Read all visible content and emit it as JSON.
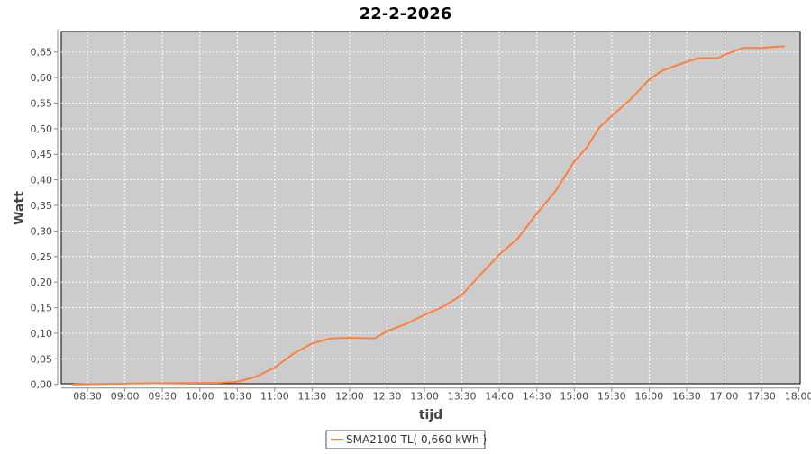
{
  "chart_data": {
    "type": "line",
    "title": "22-2-2026",
    "xlabel": "tijd",
    "ylabel": "Watt",
    "xlim": [
      "08:09",
      "18:01"
    ],
    "ylim": [
      0,
      0.69
    ],
    "grid": true,
    "x_ticks": [
      "08:30",
      "09:00",
      "09:30",
      "10:00",
      "10:30",
      "11:00",
      "11:30",
      "12:00",
      "12:30",
      "13:00",
      "13:30",
      "14:00",
      "14:30",
      "15:00",
      "15:30",
      "16:00",
      "16:30",
      "17:00",
      "17:30",
      "18:00"
    ],
    "y_ticks": [
      "0,00",
      "0,05",
      "0,10",
      "0,15",
      "0,20",
      "0,25",
      "0,30",
      "0,35",
      "0,40",
      "0,45",
      "0,50",
      "0,55",
      "0,60",
      "0,65"
    ],
    "legend_position": "bottom",
    "colors": {
      "plot_background": "#cccccc",
      "series": "#ff7f3f",
      "grid": "#ffffff"
    },
    "series": [
      {
        "name": "SMA2100 TL( 0,660 kWh )",
        "x": [
          "08:19",
          "09:13",
          "10:15",
          "10:30",
          "10:45",
          "11:00",
          "11:15",
          "11:30",
          "11:45",
          "12:00",
          "12:20",
          "12:30",
          "12:45",
          "13:00",
          "13:15",
          "13:30",
          "13:45",
          "14:00",
          "14:15",
          "14:30",
          "14:45",
          "15:00",
          "15:10",
          "15:20",
          "15:30",
          "15:45",
          "16:00",
          "16:10",
          "16:30",
          "16:40",
          "16:55",
          "17:00",
          "17:15",
          "17:30",
          "17:40",
          "17:48"
        ],
        "values": [
          0,
          0.002,
          0.003,
          0.005,
          0.015,
          0.033,
          0.06,
          0.08,
          0.09,
          0.091,
          0.09,
          0.104,
          0.118,
          0.136,
          0.152,
          0.175,
          0.215,
          0.254,
          0.286,
          0.334,
          0.378,
          0.436,
          0.463,
          0.502,
          0.525,
          0.557,
          0.596,
          0.613,
          0.631,
          0.638,
          0.638,
          0.644,
          0.658,
          0.658,
          0.66,
          0.661
        ]
      }
    ]
  }
}
